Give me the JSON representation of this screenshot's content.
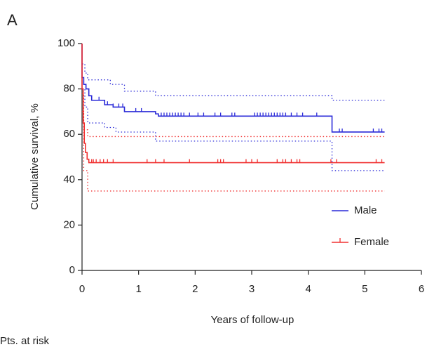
{
  "panel_label": "A",
  "footer": "Pts. at risk",
  "chart_data": {
    "type": "kaplan-meier",
    "x_label": "Years of follow-up",
    "y_label": "Cumulative survival, %",
    "xlim": [
      0,
      6
    ],
    "xticks": [
      0,
      1,
      2,
      3,
      4,
      5,
      6
    ],
    "ylim": [
      0,
      100
    ],
    "yticks": [
      0,
      20,
      40,
      60,
      80,
      100
    ],
    "legend": "lower right",
    "series": [
      {
        "name": "Male",
        "color": "#2a2ad8",
        "x": [
          0,
          0,
          0.03,
          0.03,
          0.07,
          0.07,
          0.12,
          0.12,
          0.17,
          0.17,
          0.4,
          0.4,
          0.55,
          0.55,
          0.75,
          0.75,
          1.3,
          1.3,
          1.35,
          1.35,
          4.42,
          4.42,
          5.35
        ],
        "values": [
          100,
          85,
          85,
          82,
          82,
          80,
          80,
          77,
          77,
          75,
          75,
          73,
          73,
          72,
          72,
          70,
          70,
          69,
          69,
          68,
          68,
          61,
          61
        ],
        "ci_upper": {
          "x": [
            0,
            0.05,
            0.05,
            0.1,
            0.1,
            0.5,
            0.5,
            0.75,
            0.75,
            1.3,
            1.3,
            4.42,
            4.42,
            5.35
          ],
          "values": [
            91,
            91,
            87,
            87,
            84,
            84,
            82,
            82,
            79,
            79,
            77,
            77,
            75,
            75
          ]
        },
        "ci_lower": {
          "x": [
            0,
            0.05,
            0.05,
            0.1,
            0.1,
            0.4,
            0.4,
            0.6,
            0.6,
            1.3,
            1.3,
            4.42,
            4.42,
            5.35
          ],
          "values": [
            80,
            80,
            72,
            72,
            65,
            65,
            63,
            63,
            61,
            61,
            57,
            57,
            44,
            44
          ]
        },
        "censor_x": [
          0.3,
          0.45,
          0.55,
          0.65,
          0.72,
          0.95,
          1.05,
          1.4,
          1.45,
          1.5,
          1.55,
          1.6,
          1.65,
          1.7,
          1.75,
          1.8,
          1.9,
          2.05,
          2.15,
          2.35,
          2.45,
          2.65,
          2.7,
          3.05,
          3.1,
          3.15,
          3.2,
          3.25,
          3.3,
          3.35,
          3.4,
          3.45,
          3.5,
          3.55,
          3.6,
          3.7,
          3.8,
          3.9,
          4.15,
          4.55,
          4.6,
          5.15,
          5.25,
          5.3
        ],
        "censor_y": [
          75,
          73,
          72,
          72,
          72,
          70,
          70,
          68,
          68,
          68,
          68,
          68,
          68,
          68,
          68,
          68,
          68,
          68,
          68,
          68,
          68,
          68,
          68,
          68,
          68,
          68,
          68,
          68,
          68,
          68,
          68,
          68,
          68,
          68,
          68,
          68,
          68,
          68,
          68,
          61,
          61,
          61,
          61,
          61
        ]
      },
      {
        "name": "Female",
        "color": "#f03030",
        "x": [
          0,
          0,
          0.02,
          0.02,
          0.04,
          0.04,
          0.06,
          0.06,
          0.09,
          0.09,
          0.12,
          0.12,
          5.35
        ],
        "values": [
          100,
          80,
          80,
          65,
          65,
          56,
          56,
          52,
          52,
          49,
          49,
          47.5,
          47.5
        ],
        "ci_upper": {
          "x": [
            0,
            0.03,
            0.03,
            0.1,
            0.1,
            5.35
          ],
          "values": [
            78,
            78,
            62,
            62,
            59,
            59
          ]
        },
        "ci_lower": {
          "x": [
            0,
            0.03,
            0.03,
            0.1,
            0.1,
            5.35
          ],
          "values": [
            70,
            70,
            44,
            44,
            35,
            35
          ]
        },
        "censor_x": [
          0.17,
          0.2,
          0.25,
          0.32,
          0.38,
          0.45,
          0.55,
          1.15,
          1.3,
          1.45,
          1.9,
          2.4,
          2.45,
          2.5,
          2.9,
          3.0,
          3.1,
          3.45,
          3.55,
          3.6,
          3.7,
          3.8,
          3.85,
          4.4,
          4.5,
          5.2,
          5.3
        ],
        "censor_y": [
          47.5,
          47.5,
          47.5,
          47.5,
          47.5,
          47.5,
          47.5,
          47.5,
          47.5,
          47.5,
          47.5,
          47.5,
          47.5,
          47.5,
          47.5,
          47.5,
          47.5,
          47.5,
          47.5,
          47.5,
          47.5,
          47.5,
          47.5,
          47.5,
          47.5,
          47.5,
          47.5
        ]
      }
    ]
  }
}
